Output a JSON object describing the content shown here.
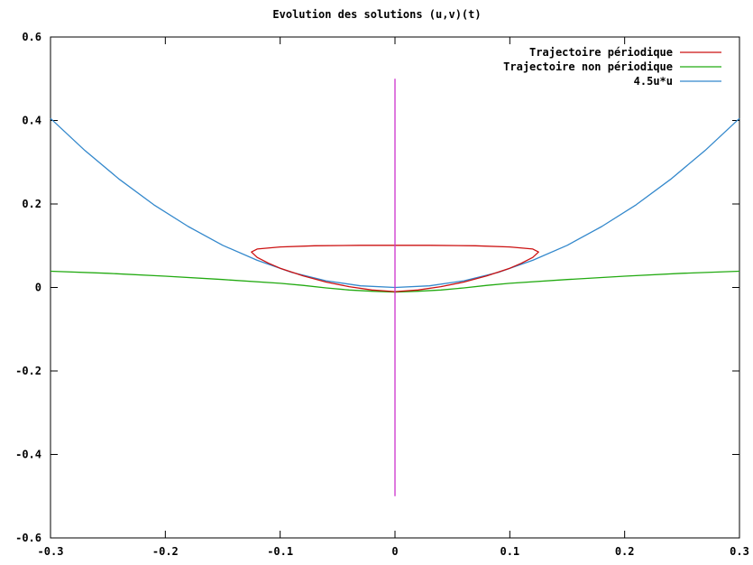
{
  "chart_data": {
    "type": "line",
    "title": "Evolution des solutions (u,v)(t)",
    "xlabel": "",
    "ylabel": "",
    "xlim": [
      -0.3,
      0.3
    ],
    "ylim": [
      -0.6,
      0.6
    ],
    "x_ticks": [
      {
        "value": -0.3,
        "label": "-0.3"
      },
      {
        "value": -0.2,
        "label": "-0.2"
      },
      {
        "value": -0.1,
        "label": "-0.1"
      },
      {
        "value": 0,
        "label": "0"
      },
      {
        "value": 0.1,
        "label": "0.1"
      },
      {
        "value": 0.2,
        "label": "0.2"
      },
      {
        "value": 0.3,
        "label": "0.3"
      }
    ],
    "y_ticks": [
      {
        "value": -0.6,
        "label": "-0.6"
      },
      {
        "value": -0.4,
        "label": "-0.4"
      },
      {
        "value": -0.2,
        "label": "-0.2"
      },
      {
        "value": 0,
        "label": "0"
      },
      {
        "value": 0.2,
        "label": "0.2"
      },
      {
        "value": 0.4,
        "label": "0.4"
      },
      {
        "value": 0.6,
        "label": "0.6"
      }
    ],
    "grid": false,
    "legend_position": "top-right",
    "series": [
      {
        "name": "Trajectoire périodique",
        "color": "#cc1111",
        "closed": true,
        "points": [
          [
            -0.125,
            0.085
          ],
          [
            -0.12,
            0.092
          ],
          [
            -0.1,
            0.097
          ],
          [
            -0.07,
            0.1
          ],
          [
            -0.03,
            0.101
          ],
          [
            0,
            0.101
          ],
          [
            0.03,
            0.101
          ],
          [
            0.07,
            0.1
          ],
          [
            0.1,
            0.097
          ],
          [
            0.12,
            0.092
          ],
          [
            0.125,
            0.085
          ],
          [
            0.12,
            0.072
          ],
          [
            0.11,
            0.058
          ],
          [
            0.1,
            0.046
          ],
          [
            0.08,
            0.028
          ],
          [
            0.06,
            0.013
          ],
          [
            0.04,
            0.002
          ],
          [
            0.02,
            -0.006
          ],
          [
            0,
            -0.01
          ],
          [
            -0.02,
            -0.006
          ],
          [
            -0.04,
            0.002
          ],
          [
            -0.06,
            0.013
          ],
          [
            -0.08,
            0.028
          ],
          [
            -0.1,
            0.046
          ],
          [
            -0.11,
            0.058
          ],
          [
            -0.12,
            0.072
          ]
        ]
      },
      {
        "name": "Trajectoire non périodique",
        "color": "#22aa11",
        "closed": false,
        "points": [
          [
            -0.3,
            0.039
          ],
          [
            -0.25,
            0.034
          ],
          [
            -0.2,
            0.027
          ],
          [
            -0.15,
            0.019
          ],
          [
            -0.1,
            0.01
          ],
          [
            -0.08,
            0.005
          ],
          [
            -0.06,
            -0.001
          ],
          [
            -0.04,
            -0.006
          ],
          [
            -0.02,
            -0.009
          ],
          [
            0,
            -0.011
          ],
          [
            0.02,
            -0.009
          ],
          [
            0.04,
            -0.006
          ],
          [
            0.06,
            -0.001
          ],
          [
            0.08,
            0.005
          ],
          [
            0.1,
            0.01
          ],
          [
            0.15,
            0.019
          ],
          [
            0.2,
            0.027
          ],
          [
            0.25,
            0.034
          ],
          [
            0.3,
            0.039
          ]
        ]
      },
      {
        "name": "4.5u*u",
        "color": "#3388cc",
        "closed": false,
        "points": [
          [
            -0.3,
            0.405
          ],
          [
            -0.27,
            0.328
          ],
          [
            -0.24,
            0.259
          ],
          [
            -0.21,
            0.198
          ],
          [
            -0.18,
            0.146
          ],
          [
            -0.15,
            0.101
          ],
          [
            -0.12,
            0.065
          ],
          [
            -0.09,
            0.036
          ],
          [
            -0.06,
            0.016
          ],
          [
            -0.03,
            0.004
          ],
          [
            0,
            0
          ],
          [
            0.03,
            0.004
          ],
          [
            0.06,
            0.016
          ],
          [
            0.09,
            0.036
          ],
          [
            0.12,
            0.065
          ],
          [
            0.15,
            0.101
          ],
          [
            0.18,
            0.146
          ],
          [
            0.21,
            0.198
          ],
          [
            0.24,
            0.259
          ],
          [
            0.27,
            0.328
          ],
          [
            0.3,
            0.405
          ]
        ]
      },
      {
        "name": "",
        "color": "#cc33cc",
        "closed": false,
        "in_legend": false,
        "points": [
          [
            0,
            -0.5
          ],
          [
            0,
            0.5
          ]
        ]
      }
    ]
  }
}
